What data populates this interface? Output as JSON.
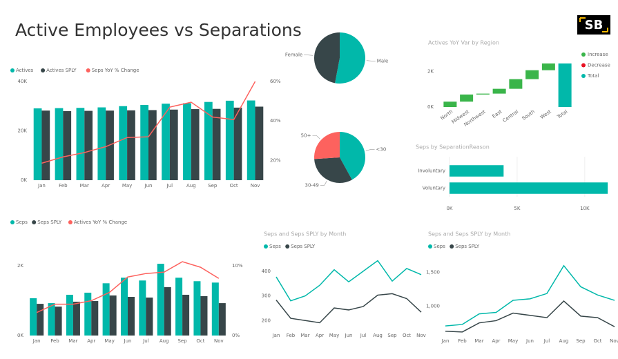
{
  "title": "Active Employees vs Separations",
  "logo": "SB",
  "chart_data": [
    {
      "type": "combo",
      "categories": [
        "Jan",
        "Feb",
        "Mar",
        "Apr",
        "May",
        "Jun",
        "Jul",
        "Aug",
        "Sep",
        "Oct",
        "Nov"
      ],
      "series": [
        {
          "name": "Actives",
          "color": "#01B8AA",
          "values": [
            29100,
            29200,
            29300,
            29500,
            30000,
            30500,
            31000,
            31200,
            31700,
            32200,
            32300
          ]
        },
        {
          "name": "Actives SPLY",
          "color": "#374649",
          "values": [
            28200,
            28000,
            28100,
            28200,
            28300,
            28400,
            28600,
            28800,
            28900,
            29400,
            29800
          ]
        },
        {
          "name": "Seps YoY % Change",
          "color": "#FD625E",
          "axis": "y2",
          "values": [
            18.6,
            21.8,
            24,
            27,
            31.6,
            32,
            47,
            49.5,
            42,
            40.7,
            60
          ]
        }
      ],
      "ylim": [
        0,
        40000
      ],
      "yticks": [
        {
          "value": 0,
          "label": "0K"
        },
        {
          "value": 20000,
          "label": "20K"
        },
        {
          "value": 40000,
          "label": "40K"
        }
      ],
      "y2lim": [
        10,
        60
      ],
      "y2ticks": [
        {
          "value": 20,
          "label": "20%"
        },
        {
          "value": 40,
          "label": "40%"
        },
        {
          "value": 60,
          "label": "60%"
        }
      ]
    },
    {
      "type": "pie",
      "categories": [
        "Male",
        "Female"
      ],
      "values": [
        53,
        47
      ],
      "colors": [
        "#01B8AA",
        "#374649"
      ]
    },
    {
      "type": "pie",
      "categories": [
        "<30",
        "30-49",
        "50+"
      ],
      "values": [
        42,
        32,
        26
      ],
      "colors": [
        "#01B8AA",
        "#374649",
        "#FD625E"
      ]
    },
    {
      "type": "waterfall",
      "title": "Actives YoY Var by Region",
      "categories": [
        "North",
        "Midwest",
        "Northwest",
        "East",
        "Central",
        "South",
        "West",
        "Total"
      ],
      "values": [
        300,
        400,
        50,
        270,
        540,
        500,
        380,
        2440
      ],
      "legend": [
        "Increase",
        "Decrease",
        "Total"
      ],
      "colors": [
        "#3AB54A",
        "#E81123",
        "#01B8AA"
      ],
      "ylim": [
        0,
        2900
      ],
      "yticks": [
        {
          "value": 0,
          "label": "0K"
        },
        {
          "value": 2000,
          "label": "2K"
        }
      ]
    },
    {
      "type": "hbar",
      "title": "Seps by SeparationReason",
      "categories": [
        "Involuntary",
        "Voluntary"
      ],
      "values": [
        4000,
        11700
      ],
      "color": "#01B8AA",
      "xlim": [
        0,
        12000
      ],
      "xticks": [
        {
          "value": 0,
          "label": "0K"
        },
        {
          "value": 5000,
          "label": "5K"
        },
        {
          "value": 10000,
          "label": "10K"
        }
      ],
      "grid": true
    },
    {
      "type": "combo",
      "categories": [
        "Jan",
        "Feb",
        "Mar",
        "Apr",
        "May",
        "Jun",
        "Jul",
        "Aug",
        "Sep",
        "Oct",
        "Nov"
      ],
      "series": [
        {
          "name": "Seps",
          "color": "#01B8AA",
          "values": [
            1070,
            930,
            1170,
            1230,
            1500,
            1660,
            1580,
            2060,
            1660,
            1560,
            1520
          ]
        },
        {
          "name": "Seps SPLY",
          "color": "#374649",
          "values": [
            910,
            830,
            970,
            990,
            1150,
            1110,
            1090,
            1390,
            1170,
            1130,
            930
          ]
        },
        {
          "name": "Actives YoY % Change",
          "color": "#FD625E",
          "axis": "y2",
          "values": [
            3.3,
            4.5,
            4.5,
            5,
            6.2,
            8.4,
            8.9,
            9.1,
            10.6,
            9.8,
            8.2
          ]
        }
      ],
      "ylim": [
        0,
        2200
      ],
      "yticks": [
        {
          "value": 0,
          "label": "0K"
        },
        {
          "value": 2000,
          "label": "2K"
        }
      ],
      "y2lim": [
        0,
        11
      ],
      "y2ticks": [
        {
          "value": 0,
          "label": "0%"
        },
        {
          "value": 10,
          "label": "10%"
        }
      ]
    },
    {
      "type": "line",
      "title": "Seps and Seps SPLY by Month",
      "categories": [
        "Jan",
        "Feb",
        "Mar",
        "Apr",
        "May",
        "Jun",
        "Jul",
        "Aug",
        "Sep",
        "Oct",
        "Nov"
      ],
      "series": [
        {
          "name": "Seps",
          "color": "#01B8AA",
          "values": [
            377,
            280,
            300,
            343,
            406,
            357,
            400,
            443,
            360,
            411,
            386
          ]
        },
        {
          "name": "Seps SPLY",
          "color": "#374649",
          "values": [
            283,
            209,
            200,
            191,
            251,
            243,
            257,
            303,
            309,
            289,
            234
          ]
        }
      ],
      "ylim": [
        170,
        450
      ],
      "yticks": [
        200,
        300,
        400
      ]
    },
    {
      "type": "line",
      "title": "Seps and Seps SPLY by Month",
      "categories": [
        "Jan",
        "Feb",
        "Mar",
        "Apr",
        "May",
        "Jun",
        "Jul",
        "Aug",
        "Sep",
        "Oct",
        "Nov"
      ],
      "series": [
        {
          "name": "Seps",
          "color": "#01B8AA",
          "values": [
            711,
            733,
            889,
            911,
            1089,
            1111,
            1189,
            1600,
            1289,
            1167,
            1089
          ]
        },
        {
          "name": "Seps SPLY",
          "color": "#374649",
          "values": [
            633,
            622,
            756,
            789,
            900,
            867,
            833,
            1078,
            856,
            833,
            700
          ]
        }
      ],
      "ylim": [
        600,
        1700
      ],
      "yticks": [
        {
          "value": 1000,
          "label": "1,000"
        },
        {
          "value": 1500,
          "label": "1,500"
        }
      ]
    }
  ]
}
